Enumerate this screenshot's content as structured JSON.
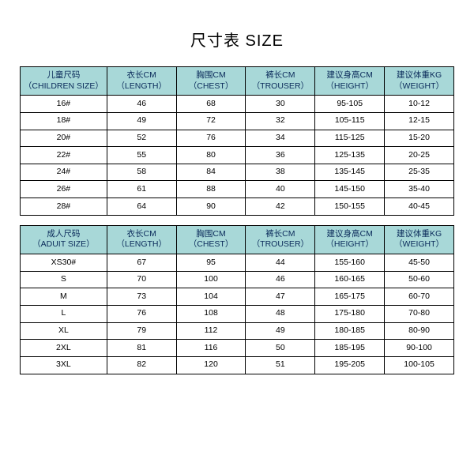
{
  "title": "尺寸表 SIZE",
  "children": {
    "headers": {
      "size_cn": "儿童尺码",
      "size_en": "（CHILDREN SIZE）",
      "length_cn": "衣长CM",
      "length_en": "（LENGTH）",
      "chest_cn": "胸围CM",
      "chest_en": "（CHEST）",
      "trouser_cn": "裤长CM",
      "trouser_en": "（TROUSER）",
      "height_cn": "建议身高CM",
      "height_en": "（HEIGHT）",
      "weight_cn": "建议体重KG",
      "weight_en": "（WEIGHT）"
    },
    "rows": [
      {
        "size": "16#",
        "length": "46",
        "chest": "68",
        "trouser": "30",
        "height": "95-105",
        "weight": "10-12"
      },
      {
        "size": "18#",
        "length": "49",
        "chest": "72",
        "trouser": "32",
        "height": "105-115",
        "weight": "12-15"
      },
      {
        "size": "20#",
        "length": "52",
        "chest": "76",
        "trouser": "34",
        "height": "115-125",
        "weight": "15-20"
      },
      {
        "size": "22#",
        "length": "55",
        "chest": "80",
        "trouser": "36",
        "height": "125-135",
        "weight": "20-25"
      },
      {
        "size": "24#",
        "length": "58",
        "chest": "84",
        "trouser": "38",
        "height": "135-145",
        "weight": "25-35"
      },
      {
        "size": "26#",
        "length": "61",
        "chest": "88",
        "trouser": "40",
        "height": "145-150",
        "weight": "35-40"
      },
      {
        "size": "28#",
        "length": "64",
        "chest": "90",
        "trouser": "42",
        "height": "150-155",
        "weight": "40-45"
      }
    ]
  },
  "adult": {
    "headers": {
      "size_cn": "成人尺码",
      "size_en": "（ADUIT SIZE）",
      "length_cn": "衣长CM",
      "length_en": "（LENGTH）",
      "chest_cn": "胸围CM",
      "chest_en": "（CHEST）",
      "trouser_cn": "裤长CM",
      "trouser_en": "（TROUSER）",
      "height_cn": "建议身高CM",
      "height_en": "（HEIGHT）",
      "weight_cn": "建议体重KG",
      "weight_en": "（WEIGHT）"
    },
    "rows": [
      {
        "size": "XS30#",
        "length": "67",
        "chest": "95",
        "trouser": "44",
        "height": "155-160",
        "weight": "45-50"
      },
      {
        "size": "S",
        "length": "70",
        "chest": "100",
        "trouser": "46",
        "height": "160-165",
        "weight": "50-60"
      },
      {
        "size": "M",
        "length": "73",
        "chest": "104",
        "trouser": "47",
        "height": "165-175",
        "weight": "60-70"
      },
      {
        "size": "L",
        "length": "76",
        "chest": "108",
        "trouser": "48",
        "height": "175-180",
        "weight": "70-80"
      },
      {
        "size": "XL",
        "length": "79",
        "chest": "112",
        "trouser": "49",
        "height": "180-185",
        "weight": "80-90"
      },
      {
        "size": "2XL",
        "length": "81",
        "chest": "116",
        "trouser": "50",
        "height": "185-195",
        "weight": "90-100"
      },
      {
        "size": "3XL",
        "length": "82",
        "chest": "120",
        "trouser": "51",
        "height": "195-205",
        "weight": "100-105"
      }
    ]
  },
  "style": {
    "header_bg": "#a8d8d8",
    "border_color": "#000000",
    "header_text_color": "#0a2a5a"
  }
}
